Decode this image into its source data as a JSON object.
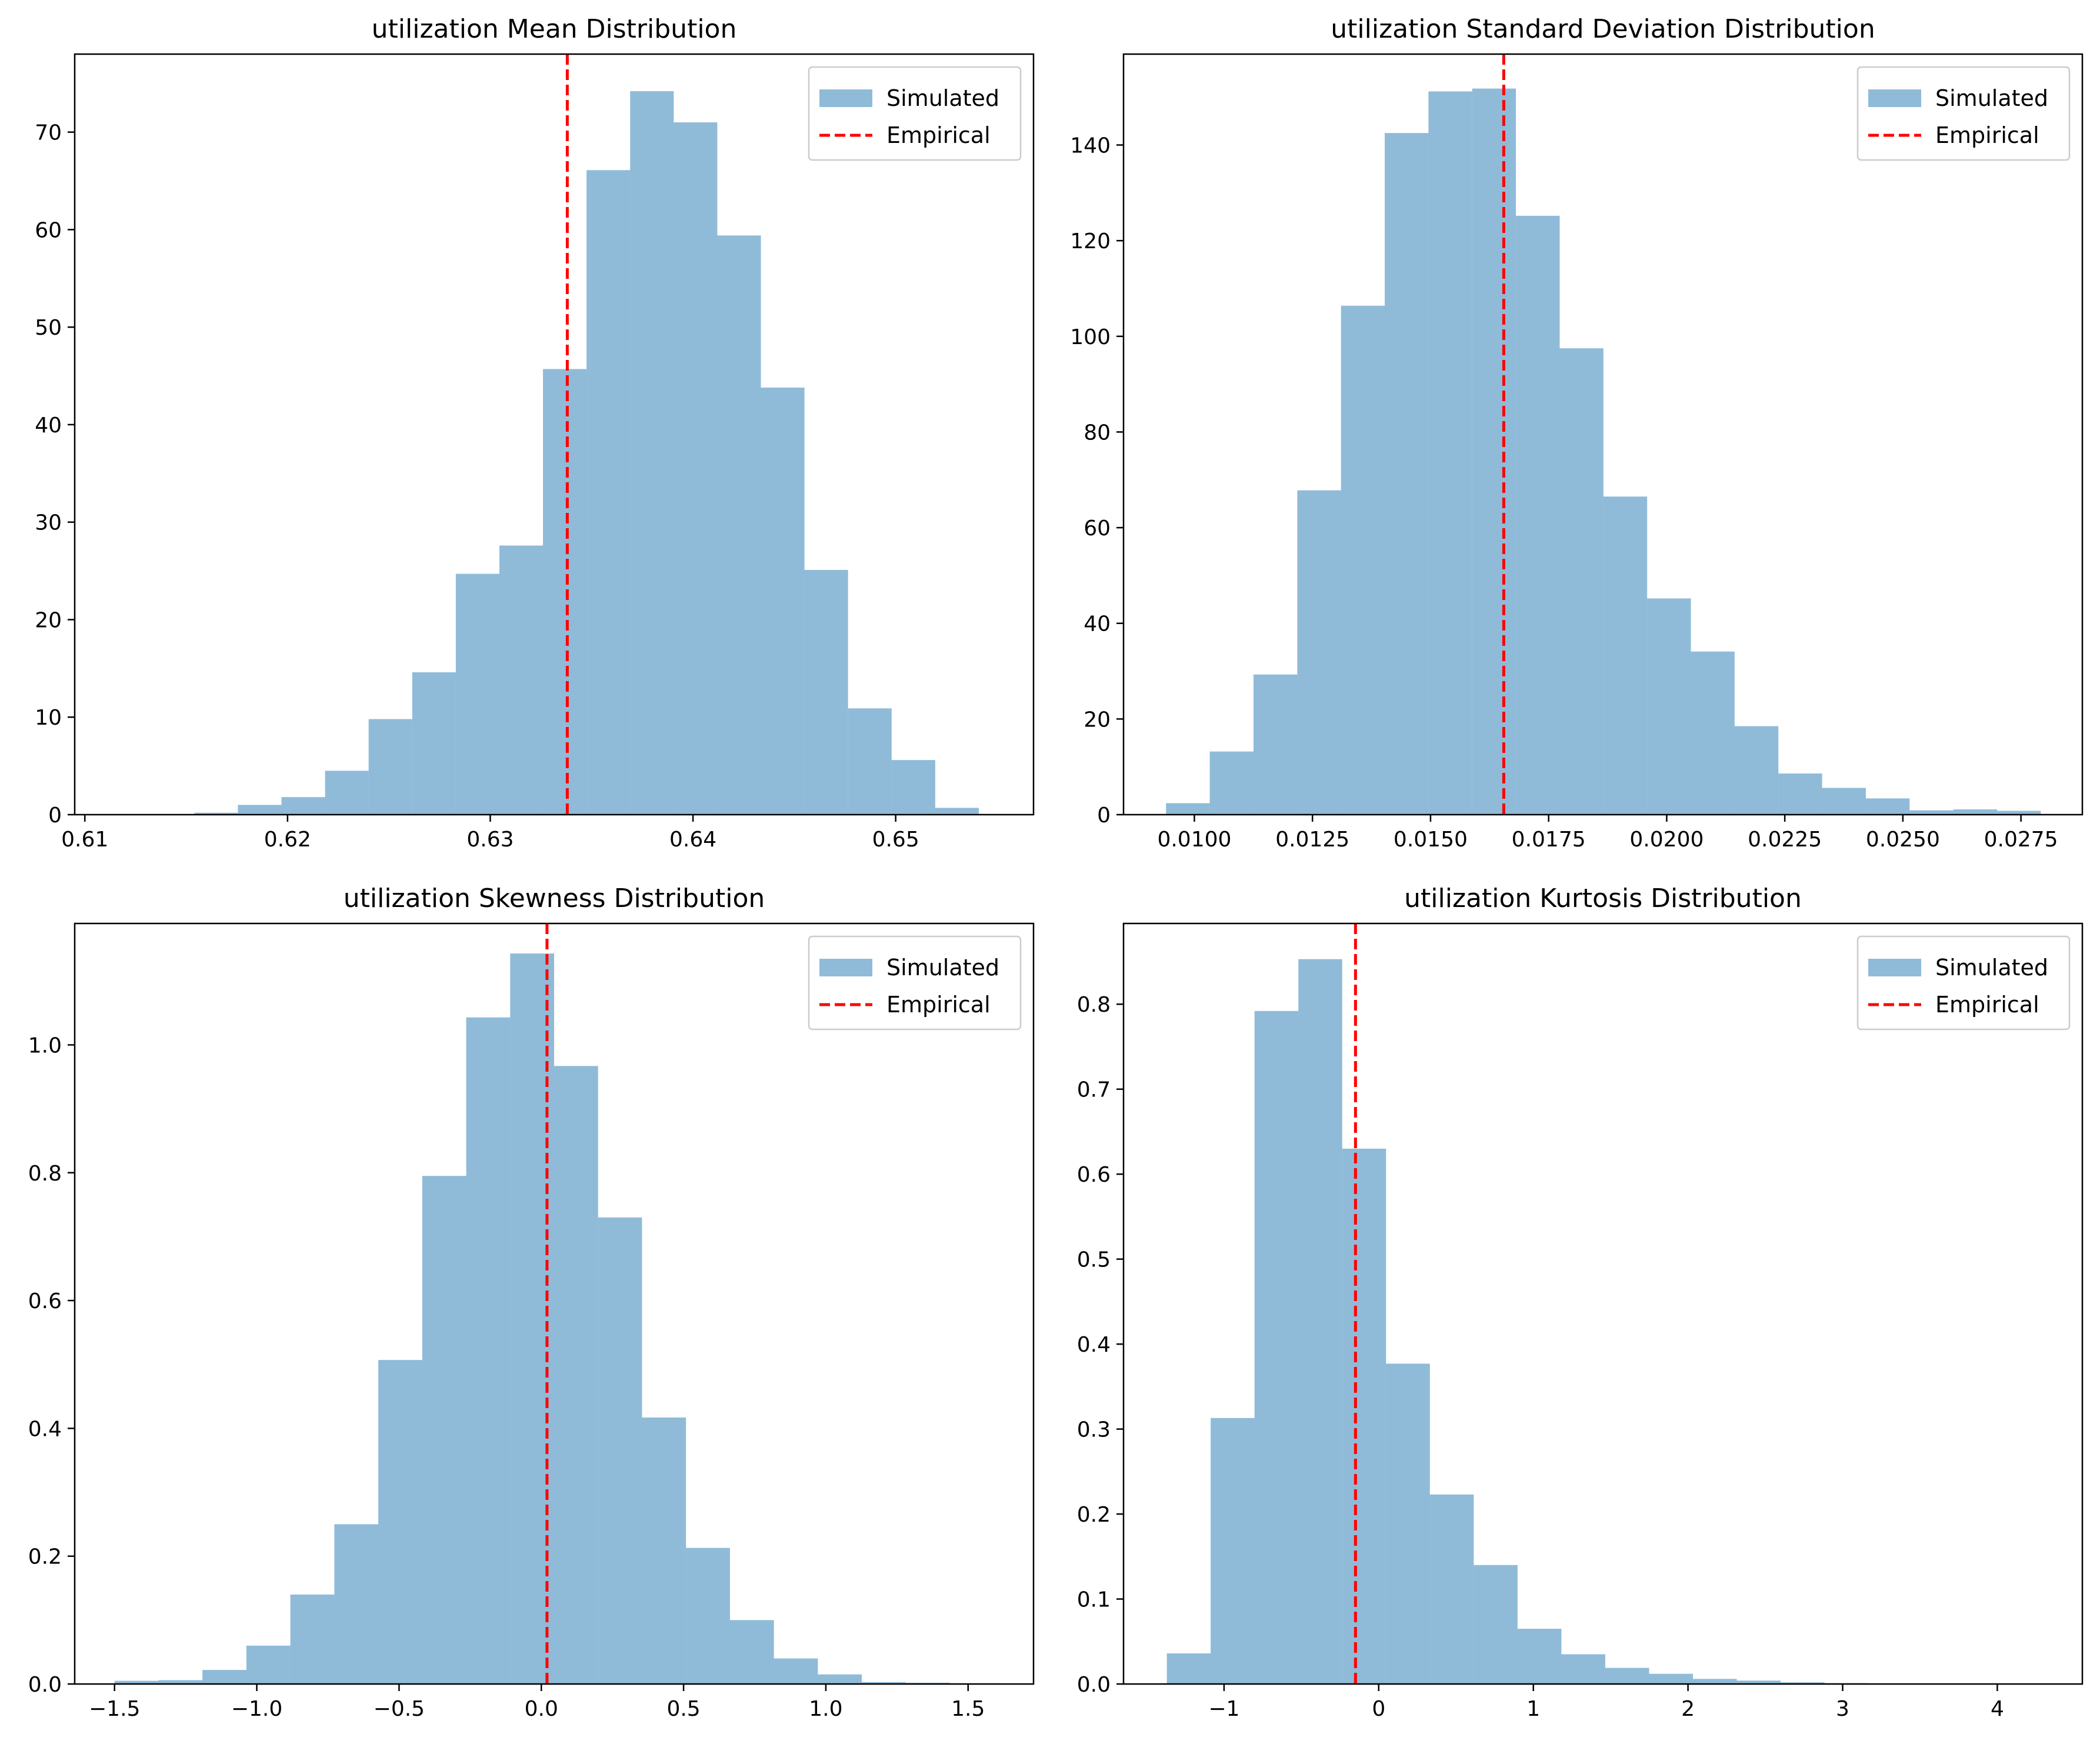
{
  "colors": {
    "simulated": "#1f77b4",
    "empirical": "#ff0000",
    "axes": "#000000",
    "legend_border": "#cccccc"
  },
  "chart_data": [
    {
      "type": "bar",
      "title": "utilization Mean Distribution",
      "xlabel": "",
      "ylabel": "",
      "xlim": [
        0.6095,
        0.6568
      ],
      "ylim": [
        0,
        78
      ],
      "xticks": [
        0.61,
        0.62,
        0.63,
        0.64,
        0.65
      ],
      "xtick_labels": [
        "0.61",
        "0.62",
        "0.63",
        "0.64",
        "0.65"
      ],
      "yticks": [
        0,
        10,
        20,
        30,
        40,
        50,
        60,
        70
      ],
      "ytick_labels": [
        "0",
        "10",
        "20",
        "30",
        "40",
        "50",
        "60",
        "70"
      ],
      "grid": false,
      "legend_position": "top-right",
      "series": [
        {
          "name": "Simulated",
          "kind": "histogram",
          "bin_edges": [
            0.6111,
            0.61325,
            0.6154,
            0.61755,
            0.6197,
            0.62185,
            0.624,
            0.62615,
            0.6283,
            0.63045,
            0.6326,
            0.63475,
            0.6369,
            0.63905,
            0.6412,
            0.64335,
            0.6455,
            0.64765,
            0.6498,
            0.65195,
            0.6541
          ],
          "values": [
            0,
            0,
            0.2,
            1.0,
            1.8,
            4.5,
            9.8,
            14.6,
            24.7,
            27.6,
            45.7,
            66.1,
            74.2,
            71.0,
            59.4,
            43.8,
            25.1,
            10.9,
            5.6,
            0.7
          ]
        },
        {
          "name": "Empirical",
          "kind": "vline",
          "x": 0.6338
        }
      ]
    },
    {
      "type": "bar",
      "title": "utilization Standard Deviation Distribution",
      "xlabel": "",
      "ylabel": "",
      "xlim": [
        0.0085,
        0.0288
      ],
      "ylim": [
        0,
        159
      ],
      "xticks": [
        0.01,
        0.0125,
        0.015,
        0.0175,
        0.02,
        0.0225,
        0.025,
        0.0275
      ],
      "xtick_labels": [
        "0.0100",
        "0.0125",
        "0.0150",
        "0.0175",
        "0.0200",
        "0.0225",
        "0.0250",
        "0.0275"
      ],
      "yticks": [
        0,
        20,
        40,
        60,
        80,
        100,
        120,
        140
      ],
      "ytick_labels": [
        "0",
        "20",
        "40",
        "60",
        "80",
        "100",
        "120",
        "140"
      ],
      "grid": false,
      "legend_position": "top-right",
      "series": [
        {
          "name": "Simulated",
          "kind": "histogram",
          "bin_edges": [
            0.0094,
            0.010326,
            0.011252,
            0.012178,
            0.013104,
            0.01403,
            0.014956,
            0.015882,
            0.016808,
            0.017734,
            0.01866,
            0.019586,
            0.020512,
            0.021438,
            0.022364,
            0.02329,
            0.024216,
            0.025142,
            0.026068,
            0.026994,
            0.02792
          ],
          "values": [
            2.4,
            13.2,
            29.3,
            67.8,
            106.4,
            142.5,
            151.2,
            151.8,
            125.2,
            97.5,
            66.5,
            45.2,
            34.1,
            18.5,
            8.6,
            5.6,
            3.4,
            0.9,
            1.1,
            0.8
          ]
        },
        {
          "name": "Empirical",
          "kind": "vline",
          "x": 0.01655
        }
      ]
    },
    {
      "type": "bar",
      "title": "utilization Skewness Distribution",
      "xlabel": "",
      "ylabel": "",
      "xlim": [
        -1.64,
        1.73
      ],
      "ylim": [
        0,
        1.19
      ],
      "xticks": [
        -1.5,
        -1.0,
        -0.5,
        0.0,
        0.5,
        1.0,
        1.5
      ],
      "xtick_labels": [
        "−1.5",
        "−1.0",
        "−0.5",
        "0.0",
        "0.5",
        "1.0",
        "1.5"
      ],
      "yticks": [
        0,
        0.2,
        0.4,
        0.6,
        0.8,
        1.0
      ],
      "ytick_labels": [
        "0.0",
        "0.2",
        "0.4",
        "0.6",
        "0.8",
        "1.0"
      ],
      "grid": false,
      "legend_position": "top-right",
      "series": [
        {
          "name": "Simulated",
          "kind": "histogram",
          "bin_edges": [
            -1.5,
            -1.3455,
            -1.191,
            -1.0365,
            -0.882,
            -0.7275,
            -0.573,
            -0.4185,
            -0.264,
            -0.1095,
            0.045,
            0.1995,
            0.354,
            0.5085,
            0.663,
            0.8175,
            0.972,
            1.1265,
            1.281,
            1.4355,
            1.59
          ],
          "values": [
            0.005,
            0.006,
            0.022,
            0.06,
            0.14,
            0.25,
            0.507,
            0.795,
            1.043,
            1.143,
            0.967,
            0.73,
            0.417,
            0.213,
            0.1,
            0.04,
            0.015,
            0.003,
            0.002,
            0.001
          ]
        },
        {
          "name": "Empirical",
          "kind": "vline",
          "x": 0.02
        }
      ]
    },
    {
      "type": "bar",
      "title": "utilization Kurtosis Distribution",
      "xlabel": "",
      "ylabel": "",
      "xlim": [
        -1.65,
        4.55
      ],
      "ylim": [
        0,
        0.895
      ],
      "xticks": [
        -1,
        0,
        1,
        2,
        3,
        4
      ],
      "xtick_labels": [
        "−1",
        "0",
        "1",
        "2",
        "3",
        "4"
      ],
      "yticks": [
        0,
        0.1,
        0.2,
        0.3,
        0.4,
        0.5,
        0.6,
        0.7,
        0.8
      ],
      "ytick_labels": [
        "0.0",
        "0.1",
        "0.2",
        "0.3",
        "0.4",
        "0.5",
        "0.6",
        "0.7",
        "0.8"
      ],
      "grid": false,
      "legend_position": "top-right",
      "series": [
        {
          "name": "Simulated",
          "kind": "histogram",
          "bin_edges": [
            -1.37,
            -1.0865,
            -0.803,
            -0.5195,
            -0.236,
            0.0475,
            0.331,
            0.6145,
            0.898,
            1.1815,
            1.465,
            1.7485,
            2.032,
            2.3155,
            2.599,
            2.8825,
            3.166,
            3.4495,
            3.733,
            4.0165,
            4.3
          ],
          "values": [
            0.036,
            0.313,
            0.792,
            0.853,
            0.63,
            0.377,
            0.223,
            0.14,
            0.065,
            0.035,
            0.019,
            0.012,
            0.006,
            0.004,
            0.002,
            0.001,
            0.0005,
            0.0003,
            0.0002,
            0.0001
          ]
        },
        {
          "name": "Empirical",
          "kind": "vline",
          "x": -0.15
        }
      ]
    }
  ]
}
